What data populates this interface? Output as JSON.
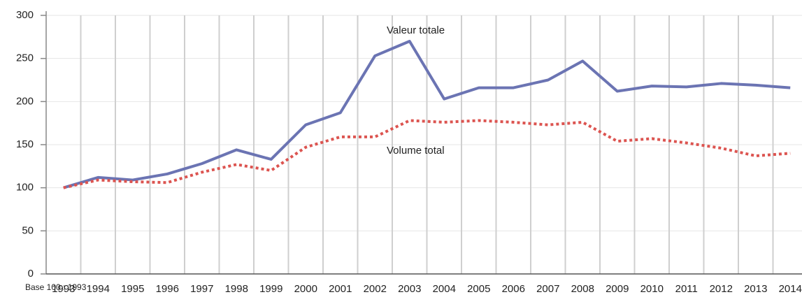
{
  "chart_data": {
    "type": "line",
    "categories": [
      "1993",
      "1994",
      "1995",
      "1996",
      "1997",
      "1998",
      "1999",
      "2000",
      "2001",
      "2002",
      "2003",
      "2004",
      "2005",
      "2006",
      "2007",
      "2008",
      "2009",
      "2010",
      "2011",
      "2012",
      "2013",
      "2014"
    ],
    "series": [
      {
        "name": "Valeur totale",
        "color": "#6b74b3",
        "dash": false,
        "values": [
          100,
          112,
          109,
          116,
          128,
          144,
          133,
          173,
          187,
          253,
          270,
          203,
          216,
          216,
          225,
          247,
          212,
          218,
          217,
          221,
          219,
          216
        ]
      },
      {
        "name": "Volume total",
        "color": "#dc5450",
        "dash": true,
        "values": [
          100,
          109,
          107,
          106,
          118,
          127,
          120,
          147,
          159,
          159,
          178,
          176,
          178,
          176,
          173,
          176,
          154,
          157,
          152,
          146,
          137,
          140
        ]
      }
    ],
    "ylim": [
      0,
      300
    ],
    "yticks": [
      0,
      50,
      100,
      150,
      200,
      250,
      300
    ],
    "grid": true,
    "note": "Base 100 : 1993"
  }
}
